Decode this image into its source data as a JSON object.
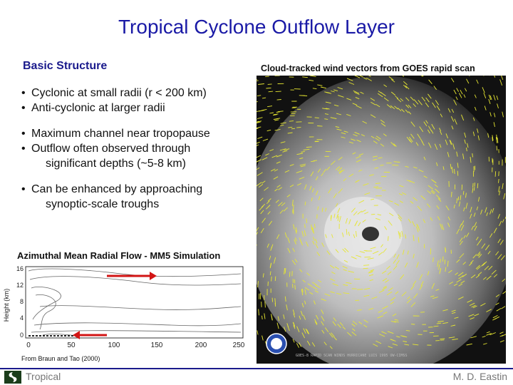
{
  "title": "Tropical Cyclone Outflow Layer",
  "section_heading": "Basic Structure",
  "image_caption": "Cloud-tracked wind vectors from GOES rapid scan",
  "bullet_groups": [
    {
      "items": [
        {
          "lines": [
            "Cyclonic at small radii (r < 200 km)"
          ]
        },
        {
          "lines": [
            "Anti-cyclonic at larger radii"
          ]
        }
      ]
    },
    {
      "items": [
        {
          "lines": [
            "Maximum channel near tropopause"
          ]
        },
        {
          "lines": [
            "Outflow often observed through",
            "significant depths (~5-8 km)"
          ]
        }
      ]
    },
    {
      "items": [
        {
          "lines": [
            "Can be enhanced by approaching",
            "synoptic-scale troughs"
          ]
        }
      ]
    }
  ],
  "simulation_caption": "Azimuthal Mean Radial Flow  -  MM5 Simulation",
  "plot": {
    "ylabel": "Height (km)",
    "y_ticks": [
      "16",
      "12",
      "8",
      "4",
      "0"
    ],
    "x_ticks": [
      "0",
      "50",
      "100",
      "150",
      "200",
      "250"
    ],
    "arrow_color": "#d21414"
  },
  "credit": "From Braun and Tao (2000)",
  "satellite_label": "GOES-8 RAPID SCAN WINDS    HURRICANE LUIS 1995    UW-CIMSS",
  "footer": {
    "left": "Tropical",
    "right": "M. D. Eastin"
  },
  "colors": {
    "title": "#1a1aa6",
    "footer_line": "#1a1a8c",
    "vectors": "#e6e632"
  }
}
